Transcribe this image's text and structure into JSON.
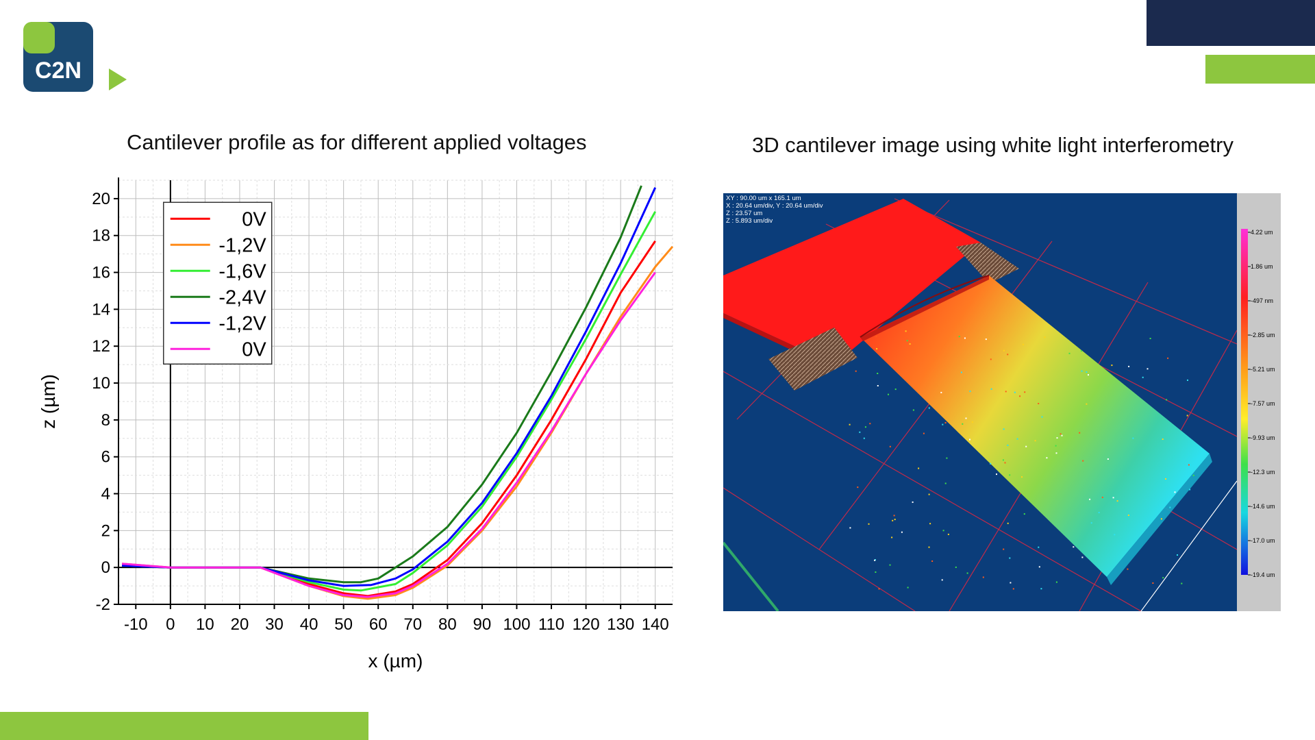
{
  "logo": {
    "text": "C2N",
    "colors": {
      "navy": "#1b4a72",
      "green": "#8dc63f"
    }
  },
  "titles": {
    "left": "Cantilever profile as for different applied voltages",
    "right": "3D cantilever image using white light interferometry"
  },
  "colors": {
    "navy": "#1b2a4e",
    "green": "#8dc63f"
  },
  "chart_data": {
    "type": "line",
    "title": "Cantilever profile as for different applied voltages",
    "xlabel": "x (µm)",
    "ylabel": "z (µm)",
    "xlim": [
      -15,
      145
    ],
    "ylim": [
      -2,
      21
    ],
    "x_ticks": [
      -10,
      0,
      10,
      20,
      30,
      40,
      50,
      60,
      70,
      80,
      90,
      100,
      110,
      120,
      130,
      140
    ],
    "y_ticks": [
      -2,
      0,
      2,
      4,
      6,
      8,
      10,
      12,
      14,
      16,
      18,
      20
    ],
    "grid": true,
    "legend_position": "top-left",
    "series": [
      {
        "name": "0V",
        "color": "#ff0000",
        "x": [
          -14,
          0,
          26,
          40,
          50,
          57,
          65,
          70,
          80,
          90,
          100,
          110,
          120,
          130,
          140
        ],
        "y": [
          0.1,
          0.0,
          0.0,
          -0.9,
          -1.4,
          -1.55,
          -1.3,
          -0.9,
          0.4,
          2.4,
          5.0,
          8.0,
          11.3,
          14.9,
          17.7
        ]
      },
      {
        "name": "-1,2V",
        "color": "#ff8c1a",
        "x": [
          -14,
          0,
          26,
          40,
          50,
          57,
          65,
          70,
          80,
          90,
          100,
          110,
          120,
          130,
          140,
          145
        ],
        "y": [
          0.2,
          0.0,
          0.0,
          -1.0,
          -1.55,
          -1.7,
          -1.5,
          -1.1,
          0.1,
          2.0,
          4.4,
          7.3,
          10.5,
          13.6,
          16.3,
          17.4
        ]
      },
      {
        "name": "-1,6V",
        "color": "#33ee33",
        "x": [
          -14,
          0,
          26,
          40,
          50,
          55,
          65,
          70,
          80,
          90,
          100,
          110,
          120,
          130,
          140
        ],
        "y": [
          0.1,
          0.0,
          0.0,
          -0.8,
          -1.2,
          -1.25,
          -0.9,
          -0.3,
          1.2,
          3.3,
          6.0,
          9.1,
          12.4,
          15.9,
          19.3
        ]
      },
      {
        "name": "-2,4V",
        "color": "#1a7a1a",
        "x": [
          -14,
          0,
          26,
          40,
          50,
          55,
          60,
          70,
          80,
          90,
          100,
          110,
          120,
          130,
          136
        ],
        "y": [
          0.1,
          0.0,
          0.0,
          -0.6,
          -0.8,
          -0.8,
          -0.6,
          0.6,
          2.2,
          4.5,
          7.3,
          10.6,
          14.1,
          17.9,
          20.7
        ]
      },
      {
        "name": "-1,2V",
        "color": "#0000ff",
        "x": [
          -14,
          0,
          26,
          40,
          50,
          58,
          65,
          70,
          80,
          90,
          100,
          110,
          120,
          130,
          140
        ],
        "y": [
          0.1,
          0.0,
          0.0,
          -0.7,
          -1.0,
          -0.95,
          -0.6,
          -0.1,
          1.4,
          3.5,
          6.2,
          9.3,
          12.8,
          16.5,
          20.6
        ]
      },
      {
        "name": "0V",
        "color": "#ff22dd",
        "x": [
          -14,
          0,
          26,
          40,
          50,
          57,
          65,
          70,
          80,
          90,
          100,
          110,
          120,
          130,
          140
        ],
        "y": [
          0.2,
          0.0,
          0.0,
          -1.0,
          -1.5,
          -1.6,
          -1.4,
          -1.0,
          0.2,
          2.1,
          4.6,
          7.4,
          10.5,
          13.4,
          16.0
        ]
      }
    ]
  },
  "interferometry": {
    "info_lines": [
      "XY : 90.00 um x 165.1 um",
      "X : 20.64 um/div, Y : 20.64 um/div",
      "Z : 23.57 um",
      "Z : 5.893 um/div"
    ],
    "scale_labels": [
      "4.22 um",
      "1.86 um",
      "-497 nm",
      "-2.85 um",
      "-5.21 um",
      "-7.57 um",
      "-9.93 um",
      "-12.3 um",
      "-14.6 um",
      "-17.0 um",
      "-19.4 um"
    ],
    "colors": {
      "background": "#0b3d7a",
      "grid": "#c02a4a",
      "panel": "#c8c8c8",
      "base": "#ff1a1a"
    }
  }
}
